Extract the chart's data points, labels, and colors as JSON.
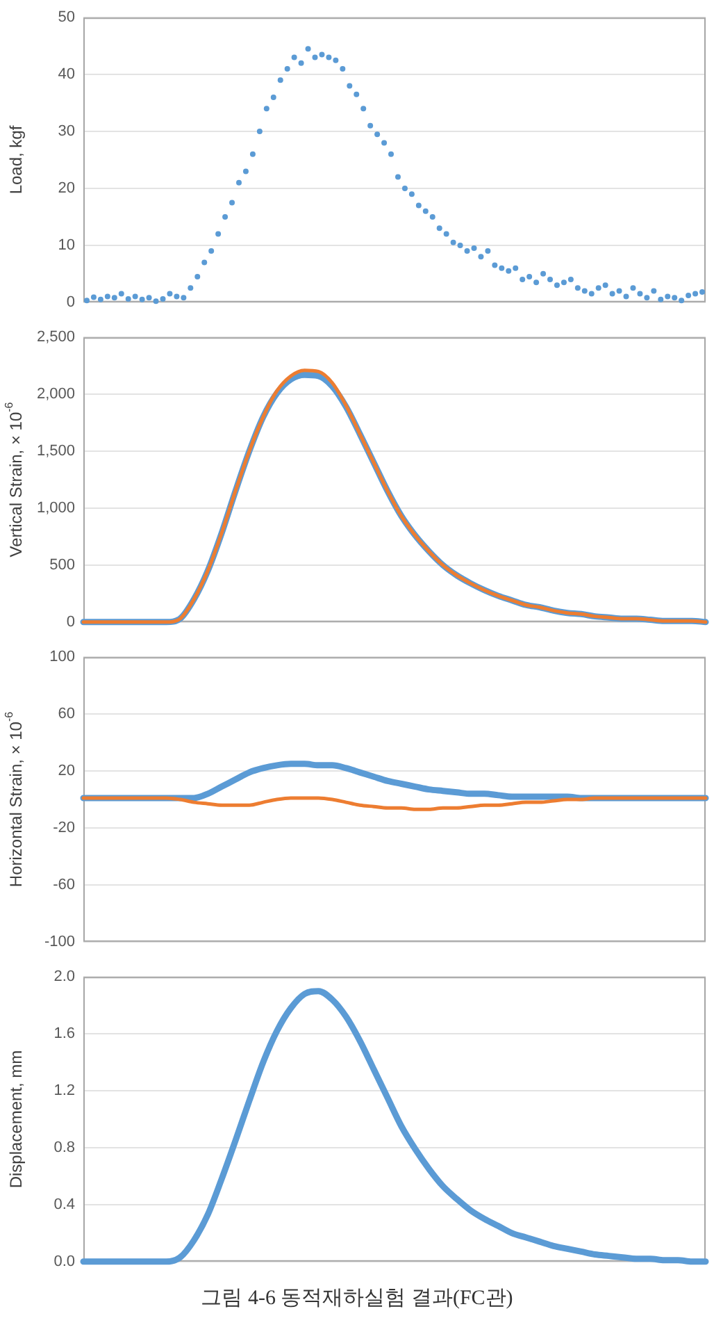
{
  "chart_data": [
    {
      "type": "scatter",
      "ylabel": "Load, kgf",
      "categories": [
        null,
        null,
        null,
        null,
        null,
        null,
        null,
        null,
        null,
        null,
        null,
        null,
        null,
        null,
        null,
        null,
        null,
        null,
        null,
        null,
        null,
        null,
        null,
        null,
        null,
        null,
        null,
        null,
        null,
        null,
        null,
        null,
        null,
        null,
        null,
        null,
        null,
        null,
        null,
        null,
        null,
        null,
        null,
        null,
        null,
        null,
        null,
        null,
        null,
        null,
        null,
        null,
        null,
        null,
        null,
        null,
        null,
        null,
        null,
        null,
        null,
        null,
        null,
        null,
        null,
        null,
        null,
        null,
        null,
        null,
        null,
        null,
        null,
        null,
        null,
        null,
        null,
        null,
        null,
        null,
        null,
        null,
        null,
        null,
        null,
        null,
        null,
        null,
        null,
        null
      ],
      "series": [
        {
          "color": "#5b9bd5",
          "values": [
            0.3,
            0.9,
            0.5,
            1.0,
            0.8,
            1.5,
            0.6,
            1.0,
            0.5,
            0.8,
            0.2,
            0.6,
            1.5,
            1.0,
            0.8,
            2.5,
            4.5,
            7,
            9,
            12,
            15,
            17.5,
            21,
            23,
            26,
            30,
            34,
            36,
            39,
            41,
            43,
            42,
            44.5,
            43,
            43.5,
            43,
            42.5,
            41,
            38,
            36.5,
            34,
            31,
            29.5,
            28,
            26,
            22,
            20,
            19,
            17,
            16,
            15,
            13,
            12,
            10.5,
            10,
            9,
            9.5,
            8,
            9,
            6.5,
            6,
            5.5,
            6,
            4,
            4.5,
            3.5,
            5,
            4,
            3,
            3.5,
            4,
            2.5,
            2,
            1.5,
            2.5,
            3,
            1.5,
            2,
            1,
            2.5,
            1.5,
            0.8,
            2,
            0.5,
            1,
            0.8,
            0.3,
            1.2,
            1.5,
            1.8
          ]
        }
      ],
      "marker": "circle",
      "ylim": [
        0,
        50
      ],
      "yticks": [
        0,
        10,
        20,
        30,
        40,
        50
      ],
      "grid": "y",
      "tick_labels": "y"
    },
    {
      "type": "line",
      "ylabel": "Vertical Strain, × 10$^{-6}$",
      "categories": [
        null,
        null,
        null,
        null,
        null,
        null,
        null,
        null,
        null,
        null,
        null,
        null,
        null,
        null,
        null,
        null,
        null,
        null,
        null,
        null,
        null,
        null,
        null,
        null,
        null,
        null,
        null,
        null,
        null,
        null,
        null,
        null,
        null,
        null,
        null,
        null,
        null,
        null,
        null,
        null,
        null,
        null,
        null,
        null,
        null,
        null
      ],
      "series": [
        {
          "color": "#5b9bd5",
          "values": [
            0,
            0,
            0,
            0,
            0,
            0,
            0,
            30,
            200,
            450,
            780,
            1150,
            1500,
            1800,
            2010,
            2130,
            2170,
            2160,
            2070,
            1890,
            1650,
            1400,
            1150,
            930,
            760,
            620,
            500,
            410,
            340,
            280,
            230,
            190,
            150,
            130,
            100,
            80,
            70,
            50,
            40,
            30,
            30,
            20,
            10,
            10,
            10,
            0
          ]
        },
        {
          "color": "#ed7d31",
          "values": [
            0,
            0,
            0,
            0,
            0,
            0,
            0,
            30,
            200,
            450,
            780,
            1150,
            1500,
            1800,
            2030,
            2160,
            2210,
            2200,
            2100,
            1900,
            1650,
            1400,
            1150,
            930,
            760,
            620,
            500,
            410,
            340,
            280,
            230,
            190,
            150,
            130,
            100,
            80,
            70,
            50,
            40,
            30,
            30,
            20,
            10,
            10,
            10,
            0
          ]
        }
      ],
      "marker": "none",
      "ylim": [
        0,
        2500
      ],
      "yticks": [
        {
          "value": 0,
          "label": "0"
        },
        {
          "value": 500,
          "label": "500"
        },
        {
          "value": 1000,
          "label": "1,000"
        },
        {
          "value": 1500,
          "label": "1,500"
        },
        {
          "value": 2000,
          "label": "2,000"
        },
        {
          "value": 2500,
          "label": "2,500"
        }
      ],
      "grid": "y",
      "tick_labels": "y"
    },
    {
      "type": "line",
      "ylabel": "Horizontal Strain, × 10$^{-6}$",
      "categories": [
        null,
        null,
        null,
        null,
        null,
        null,
        null,
        null,
        null,
        null,
        null,
        null,
        null,
        null,
        null,
        null,
        null,
        null,
        null,
        null,
        null,
        null,
        null,
        null,
        null,
        null,
        null,
        null,
        null,
        null,
        null,
        null,
        null,
        null,
        null,
        null,
        null,
        null,
        null,
        null,
        null,
        null,
        null,
        null,
        null,
        null
      ],
      "series": [
        {
          "color": "#5b9bd5",
          "values": [
            1,
            1,
            1,
            1,
            1,
            1,
            1,
            1,
            1,
            4,
            9,
            14,
            19,
            22,
            24,
            25,
            25,
            24,
            24,
            22,
            19,
            16,
            13,
            11,
            9,
            7,
            6,
            5,
            4,
            4,
            3,
            2,
            2,
            2,
            2,
            2,
            1,
            1,
            1,
            1,
            1,
            1,
            1,
            1,
            1,
            1
          ]
        },
        {
          "color": "#ed7d31",
          "values": [
            1,
            1,
            1,
            1,
            1,
            1,
            1,
            0,
            -2,
            -3,
            -4,
            -4,
            -4,
            -2,
            0,
            1,
            1,
            1,
            0,
            -2,
            -4,
            -5,
            -6,
            -6,
            -7,
            -7,
            -6,
            -6,
            -5,
            -4,
            -4,
            -3,
            -2,
            -2,
            -1,
            0,
            0,
            1,
            1,
            1,
            1,
            1,
            1,
            1,
            1,
            1
          ]
        }
      ],
      "marker": "none",
      "ylim": [
        -100,
        100
      ],
      "yticks": [
        -100,
        -60,
        -20,
        20,
        60,
        100
      ],
      "grid": "y",
      "tick_labels": "y"
    },
    {
      "type": "line",
      "ylabel": "Displacement, mm",
      "categories": [
        null,
        null,
        null,
        null,
        null,
        null,
        null,
        null,
        null,
        null,
        null,
        null,
        null,
        null,
        null,
        null,
        null,
        null,
        null,
        null,
        null,
        null,
        null,
        null,
        null,
        null,
        null,
        null,
        null,
        null,
        null,
        null,
        null,
        null,
        null,
        null,
        null,
        null,
        null,
        null,
        null,
        null,
        null,
        null,
        null,
        null
      ],
      "series": [
        {
          "color": "#5b9bd5",
          "values": [
            0,
            0,
            0,
            0,
            0,
            0,
            0,
            0.03,
            0.15,
            0.33,
            0.58,
            0.85,
            1.13,
            1.4,
            1.62,
            1.78,
            1.88,
            1.9,
            1.84,
            1.72,
            1.55,
            1.35,
            1.15,
            0.95,
            0.79,
            0.65,
            0.53,
            0.44,
            0.36,
            0.3,
            0.25,
            0.2,
            0.17,
            0.14,
            0.11,
            0.09,
            0.07,
            0.05,
            0.04,
            0.03,
            0.02,
            0.02,
            0.01,
            0.01,
            0,
            0
          ]
        }
      ],
      "marker": "none",
      "ylim": [
        0,
        2
      ],
      "yticks": [
        {
          "value": 0,
          "label": "0.0"
        },
        {
          "value": 0.4,
          "label": "0.4"
        },
        {
          "value": 0.8,
          "label": "0.8"
        },
        {
          "value": 1.2,
          "label": "1.2"
        },
        {
          "value": 1.6,
          "label": "1.6"
        },
        {
          "value": 2,
          "label": "2.0"
        }
      ],
      "grid": "y",
      "tick_labels": "y",
      "annotations": [
        "그림 4-6 동적재하실험 결과(FC관)"
      ]
    }
  ]
}
